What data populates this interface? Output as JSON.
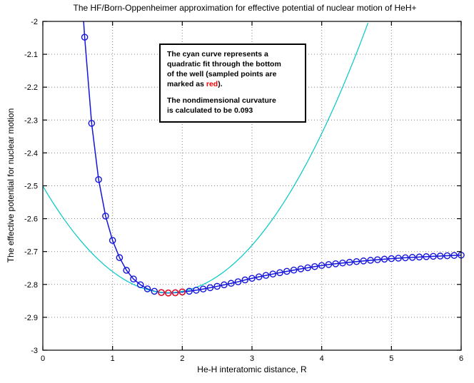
{
  "figure": {
    "title": "The HF/Born-Oppenheimer approximation for effective potential of nuclear motion of HeH+",
    "xlabel": "He-H interatomic distance, R",
    "ylabel": "The effective potential for nuclear motion"
  },
  "annotation": {
    "para1_text": "The cyan curve represents a\nquadratic fit through the bottom\nof the well (sampled points are\nmarked as ",
    "para1_highlight": "red",
    "para1_suffix": ").",
    "para2_text": "The nondimensional curvature\nis calculated to be 0.093"
  },
  "colors": {
    "curve_blue": "#1414dd",
    "fit_cyan": "#00c8c8",
    "sample_red": "#e81123",
    "grid": "#848484",
    "axis": "#000000",
    "background": "#ffffff",
    "annotation_red": "#ff0000"
  },
  "chart_data": {
    "type": "line",
    "title": "The HF/Born-Oppenheimer approximation for effective potential of nuclear motion of HeH+",
    "xlabel": "He-H interatomic distance, R",
    "ylabel": "The effective potential for nuclear motion",
    "xlim": [
      0,
      6
    ],
    "ylim": [
      -3,
      -2
    ],
    "grid": true,
    "legend": "none",
    "xticks": {
      "values": [
        0,
        1,
        2,
        3,
        4,
        5,
        6
      ],
      "labels": [
        "0",
        "1",
        "2",
        "3",
        "4",
        "5",
        "6"
      ]
    },
    "yticks": {
      "values": [
        -3,
        -2.9,
        -2.8,
        -2.7,
        -2.6,
        -2.5,
        -2.4,
        -2.3,
        -2.2,
        -2.1,
        -2
      ],
      "labels": [
        "-3",
        "-2.9",
        "-2.8",
        "-2.7",
        "-2.6",
        "-2.5",
        "-2.4",
        "-2.3",
        "-2.2",
        "-2.1",
        "-2"
      ]
    },
    "curvature_value": 0.093,
    "series": [
      {
        "name": "hf-bo-potential",
        "style": "line+open-circle-markers",
        "color": "#1414dd",
        "line_entry_point": [
          0.585,
          -2.0
        ],
        "x": [
          0.6,
          0.7,
          0.8,
          0.9,
          1.0,
          1.1,
          1.2,
          1.3,
          1.4,
          1.5,
          1.6,
          1.7,
          1.8,
          1.9,
          2.0,
          2.1,
          2.2,
          2.3,
          2.4,
          2.5,
          2.6,
          2.7,
          2.8,
          2.9,
          3.0,
          3.1,
          3.2,
          3.3,
          3.4,
          3.5,
          3.6,
          3.7,
          3.8,
          3.9,
          4.0,
          4.1,
          4.2,
          4.3,
          4.4,
          4.5,
          4.6,
          4.7,
          4.8,
          4.9,
          5.0,
          5.1,
          5.2,
          5.3,
          5.4,
          5.5,
          5.6,
          5.7,
          5.8,
          5.9,
          6.0
        ],
        "y": [
          -2.048,
          -2.31,
          -2.481,
          -2.592,
          -2.666,
          -2.7185,
          -2.757,
          -2.7835,
          -2.801,
          -2.8135,
          -2.8208,
          -2.8247,
          -2.826,
          -2.8252,
          -2.8228,
          -2.8206,
          -2.8176,
          -2.814,
          -2.81,
          -2.8057,
          -2.8012,
          -2.7966,
          -2.7919,
          -2.7863,
          -2.7815,
          -2.7769,
          -2.7725,
          -2.7683,
          -2.7642,
          -2.7602,
          -2.7564,
          -2.7527,
          -2.7492,
          -2.7457,
          -2.7424,
          -2.7395,
          -2.7371,
          -2.7348,
          -2.7326,
          -2.7305,
          -2.7285,
          -2.7266,
          -2.7248,
          -2.7231,
          -2.7215,
          -2.7202,
          -2.7189,
          -2.7177,
          -2.7166,
          -2.7155,
          -2.7145,
          -2.7136,
          -2.7127,
          -2.7118,
          -2.711
        ]
      },
      {
        "name": "quadratic-fit",
        "style": "line",
        "color": "#00c8c8",
        "equation": "y = 0.1*(x-1.8)^2 - 2.825",
        "a": 0.1,
        "x0": 1.8,
        "ymin": -2.825,
        "x_range": [
          0,
          4.672
        ]
      },
      {
        "name": "fit-sample-points",
        "style": "open-circle-markers",
        "color": "#e81123",
        "points": [
          [
            1.7,
            -2.8247
          ],
          [
            1.8,
            -2.826
          ],
          [
            1.9,
            -2.8252
          ],
          [
            2.0,
            -2.8228
          ]
        ]
      }
    ]
  }
}
